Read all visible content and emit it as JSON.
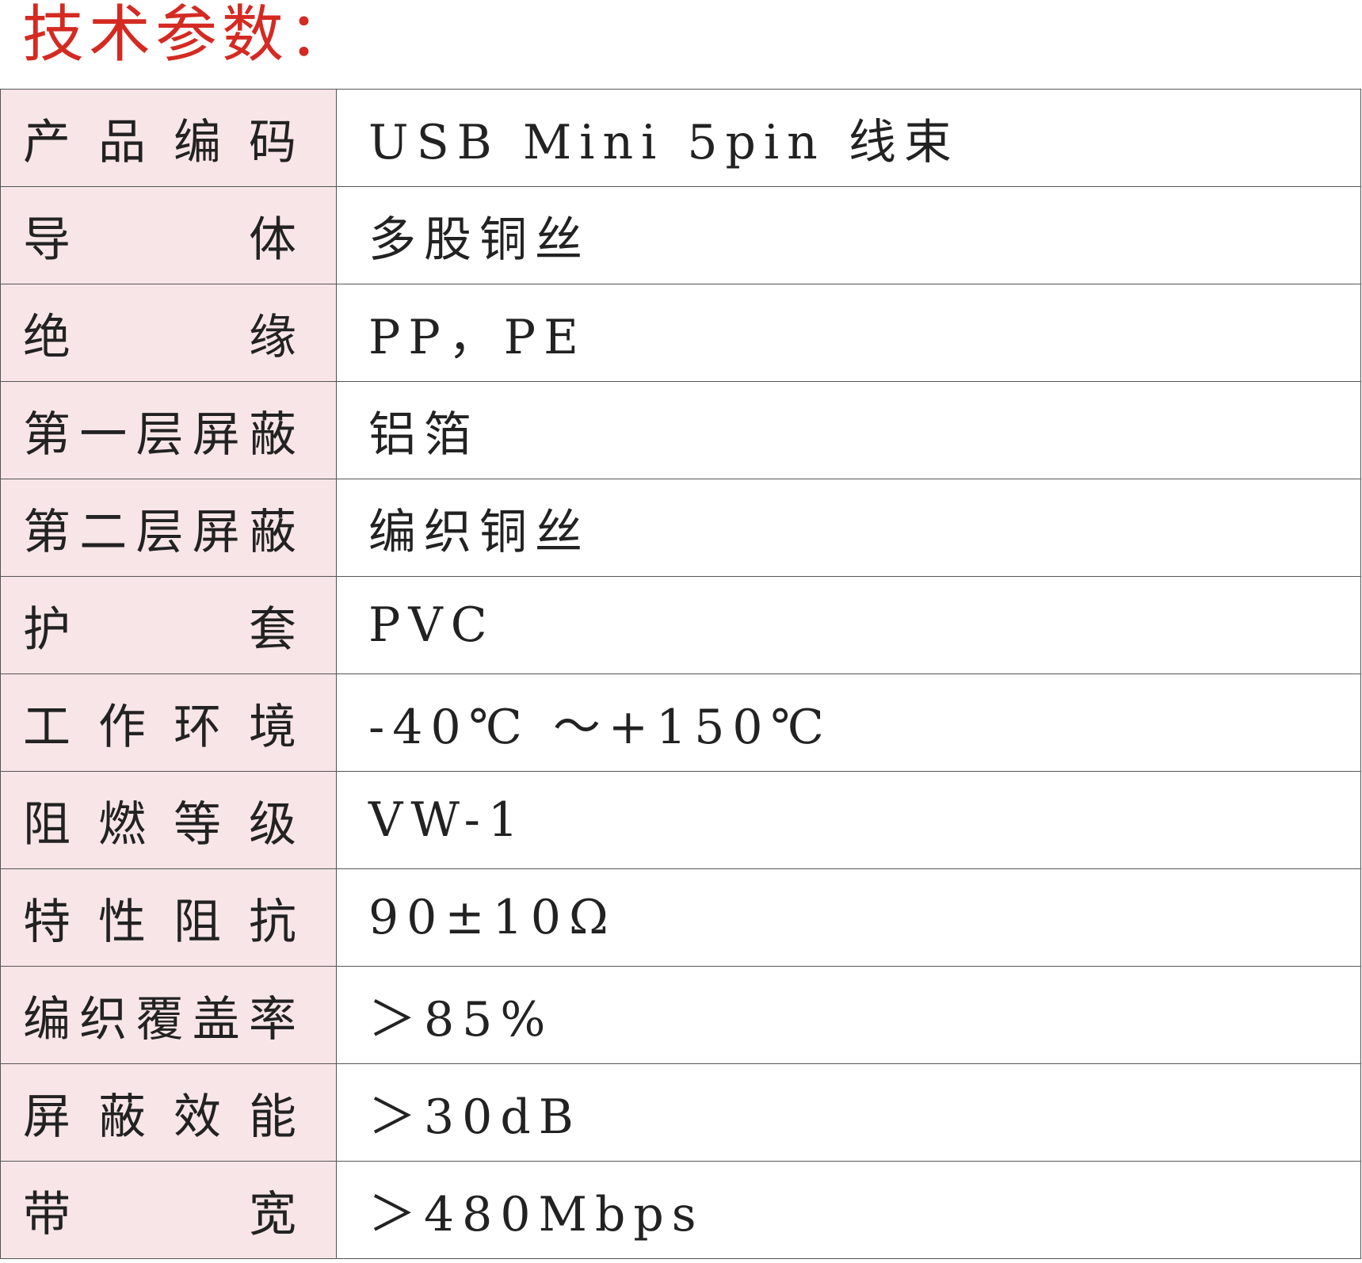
{
  "title": "技术参数：",
  "rows": [
    {
      "label": "产品编码",
      "value": "USB Mini 5pin 线束"
    },
    {
      "label": "导体",
      "value": "多股铜丝"
    },
    {
      "label": "绝缘",
      "value": "PP，PE"
    },
    {
      "label": "第一层屏蔽",
      "value": "铝箔"
    },
    {
      "label": "第二层屏蔽",
      "value": "编织铜丝"
    },
    {
      "label": "护套",
      "value": "PVC"
    },
    {
      "label": "工作环境",
      "value": "-40℃ ～+150℃"
    },
    {
      "label": "阻燃等级",
      "value": "VW-1"
    },
    {
      "label": "特性阻抗",
      "value": "90±10Ω"
    },
    {
      "label": "编织覆盖率",
      "value": "＞85%"
    },
    {
      "label": "屏蔽效能",
      "value": "＞30dB"
    },
    {
      "label": "带宽",
      "value": "＞480Mbps"
    }
  ],
  "colors": {
    "title": "#d42a22",
    "label_bg": "#f7e5e7",
    "border": "#555555"
  }
}
